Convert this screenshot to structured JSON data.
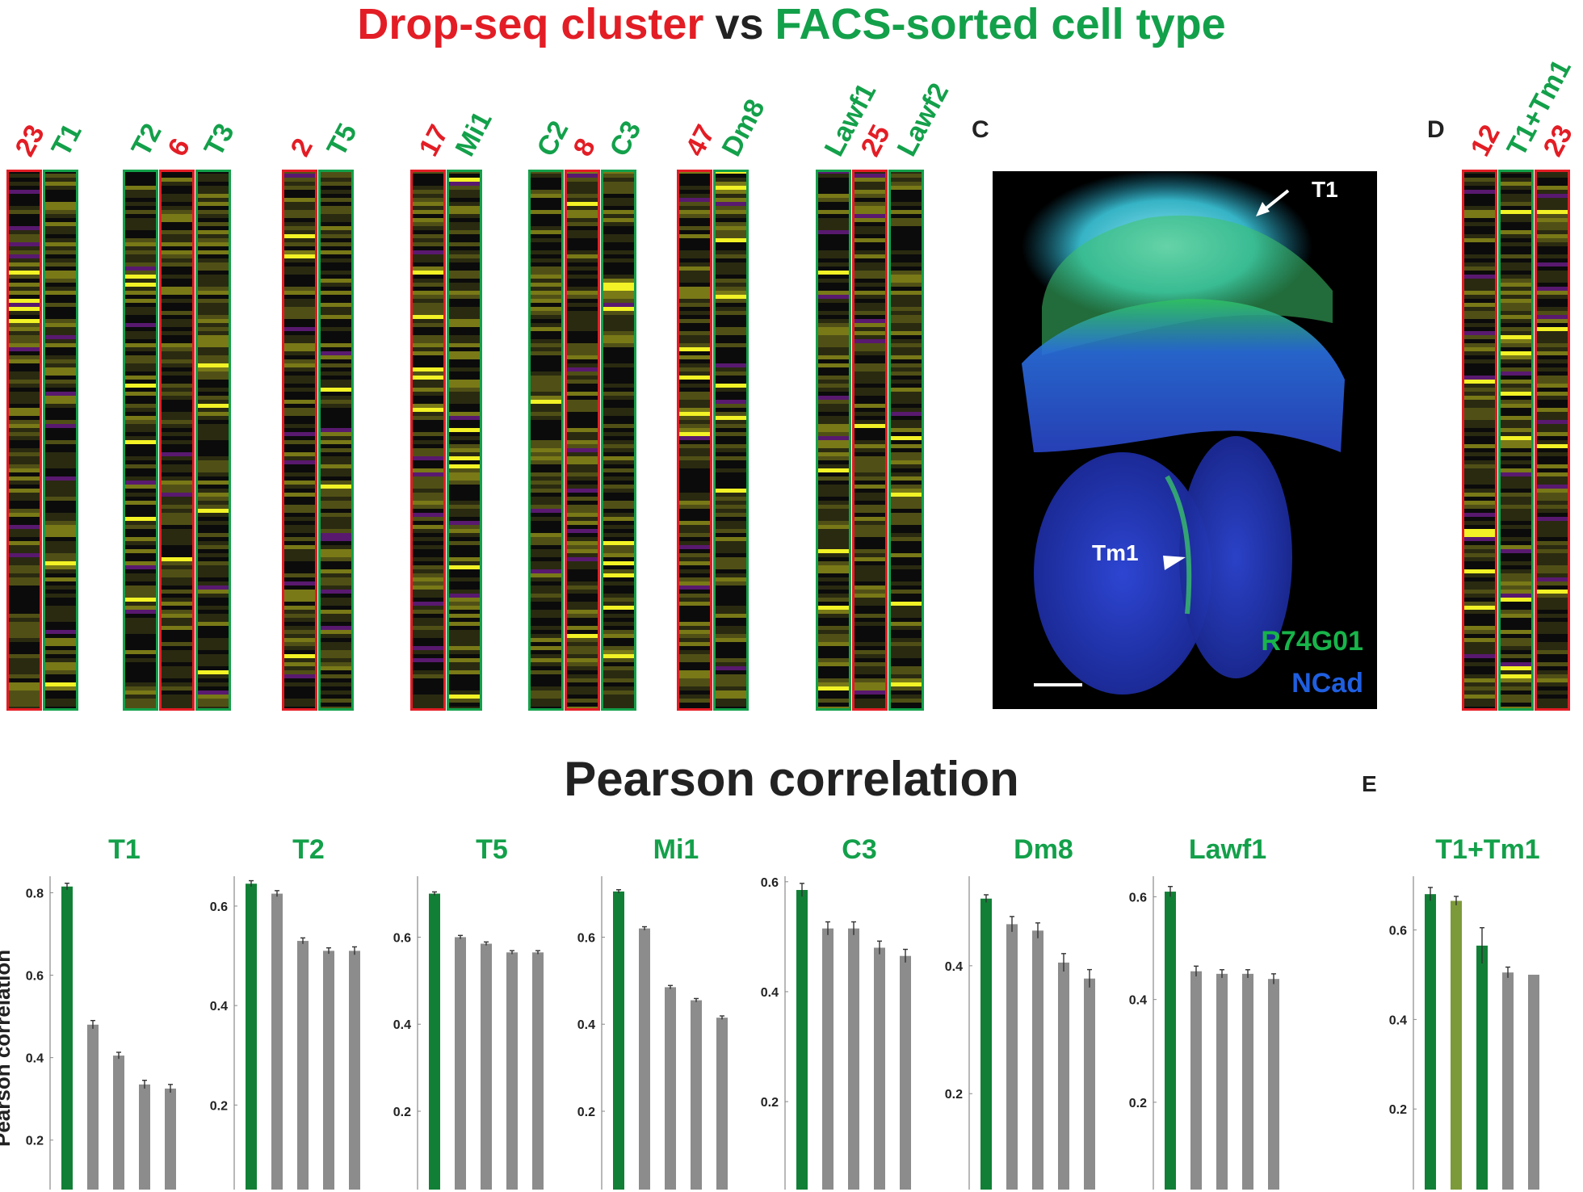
{
  "title": {
    "part1": "Drop-seq cluster",
    "part2": "vs",
    "part3": "FACS-sorted cell type"
  },
  "panel_c": {
    "letter": "C",
    "labels": {
      "t1": "T1",
      "tm1": "Tm1",
      "driver": "R74G01",
      "marker": "NCad"
    }
  },
  "panel_d": {
    "letter": "D"
  },
  "panel_e": {
    "letter": "E"
  },
  "colors": {
    "drop_seq": "#e31d25",
    "facs": "#13a04a",
    "bar_match": "#118036",
    "bar_other": "#8c8c8c",
    "bar_olive": "#7c9a3a",
    "heatmap_bg": "#0b0b0b",
    "heatmap_high": "#ffff28",
    "heatmap_low": "#7a1f9a"
  },
  "heatmap_groups": [
    {
      "columns": [
        {
          "label": "23",
          "kind": "drop"
        },
        {
          "label": "T1",
          "kind": "facs"
        }
      ]
    },
    {
      "columns": [
        {
          "label": "T2",
          "kind": "facs"
        },
        {
          "label": "6",
          "kind": "drop"
        },
        {
          "label": "T3",
          "kind": "facs"
        }
      ]
    },
    {
      "columns": [
        {
          "label": "2",
          "kind": "drop"
        },
        {
          "label": "T5",
          "kind": "facs"
        }
      ]
    },
    {
      "columns": [
        {
          "label": "17",
          "kind": "drop"
        },
        {
          "label": "Mi1",
          "kind": "facs"
        }
      ]
    },
    {
      "columns": [
        {
          "label": "C2",
          "kind": "facs"
        },
        {
          "label": "8",
          "kind": "drop"
        },
        {
          "label": "C3",
          "kind": "facs"
        }
      ]
    },
    {
      "columns": [
        {
          "label": "47",
          "kind": "drop"
        },
        {
          "label": "Dm8",
          "kind": "facs"
        }
      ]
    },
    {
      "columns": [
        {
          "label": "Lawf1",
          "kind": "facs"
        },
        {
          "label": "25",
          "kind": "drop"
        },
        {
          "label": "Lawf2",
          "kind": "facs"
        }
      ]
    },
    {
      "columns": [
        {
          "label": "12",
          "kind": "drop"
        },
        {
          "label": "T1+Tm1",
          "kind": "facs"
        },
        {
          "label": "23",
          "kind": "drop"
        }
      ]
    }
  ],
  "chart_data": {
    "type": "bar",
    "title": "Pearson correlation",
    "ylabel": "Pearson correlation",
    "panels": [
      {
        "title": "T1",
        "ylim": [
          0.08,
          0.84
        ],
        "yticks": [
          0.2,
          0.4,
          0.6,
          0.8
        ],
        "values": [
          0.815,
          0.48,
          0.405,
          0.335,
          0.325
        ],
        "errors": [
          0.008,
          0.01,
          0.008,
          0.01,
          0.01
        ],
        "colors": [
          "match",
          "other",
          "other",
          "other",
          "other"
        ]
      },
      {
        "title": "T2",
        "ylim": [
          0.03,
          0.66
        ],
        "yticks": [
          0.2,
          0.4,
          0.6
        ],
        "values": [
          0.645,
          0.625,
          0.53,
          0.51,
          0.51
        ],
        "errors": [
          0.006,
          0.006,
          0.006,
          0.006,
          0.008
        ],
        "colors": [
          "match",
          "other",
          "other",
          "other",
          "other"
        ]
      },
      {
        "title": "T5",
        "ylim": [
          0.02,
          0.74
        ],
        "yticks": [
          0.2,
          0.4,
          0.6
        ],
        "values": [
          0.7,
          0.6,
          0.585,
          0.565,
          0.565
        ],
        "errors": [
          0.004,
          0.004,
          0.004,
          0.004,
          0.004
        ],
        "colors": [
          "match",
          "other",
          "other",
          "other",
          "other"
        ]
      },
      {
        "title": "Mi1",
        "ylim": [
          0.02,
          0.74
        ],
        "yticks": [
          0.2,
          0.4,
          0.6
        ],
        "values": [
          0.705,
          0.62,
          0.485,
          0.455,
          0.415
        ],
        "errors": [
          0.004,
          0.004,
          0.004,
          0.004,
          0.004
        ],
        "colors": [
          "match",
          "other",
          "other",
          "other",
          "other"
        ]
      },
      {
        "title": "C3",
        "ylim": [
          0.04,
          0.61
        ],
        "yticks": [
          0.2,
          0.4,
          0.6
        ],
        "values": [
          0.585,
          0.515,
          0.515,
          0.48,
          0.465
        ],
        "errors": [
          0.012,
          0.012,
          0.012,
          0.012,
          0.012
        ],
        "colors": [
          "match",
          "other",
          "other",
          "other",
          "other"
        ]
      },
      {
        "title": "Dm8",
        "ylim": [
          0.05,
          0.54
        ],
        "yticks": [
          0.2,
          0.4
        ],
        "values": [
          0.505,
          0.465,
          0.455,
          0.405,
          0.38
        ],
        "errors": [
          0.006,
          0.012,
          0.012,
          0.014,
          0.014
        ],
        "colors": [
          "match",
          "other",
          "other",
          "other",
          "other"
        ]
      },
      {
        "title": "Lawf1",
        "ylim": [
          0.03,
          0.64
        ],
        "yticks": [
          0.2,
          0.4,
          0.6
        ],
        "values": [
          0.61,
          0.455,
          0.45,
          0.45,
          0.44
        ],
        "errors": [
          0.01,
          0.01,
          0.008,
          0.008,
          0.01
        ],
        "colors": [
          "match",
          "other",
          "other",
          "other",
          "other"
        ]
      },
      {
        "title": "T1+Tm1",
        "ylim": [
          0.02,
          0.72
        ],
        "yticks": [
          0.2,
          0.4,
          0.6
        ],
        "values": [
          0.68,
          0.665,
          0.565,
          0.505,
          0.5
        ],
        "errors": [
          0.015,
          0.01,
          0.04,
          0.012,
          0.0
        ],
        "colors": [
          "match",
          "olive",
          "match",
          "other",
          "other"
        ]
      }
    ]
  }
}
